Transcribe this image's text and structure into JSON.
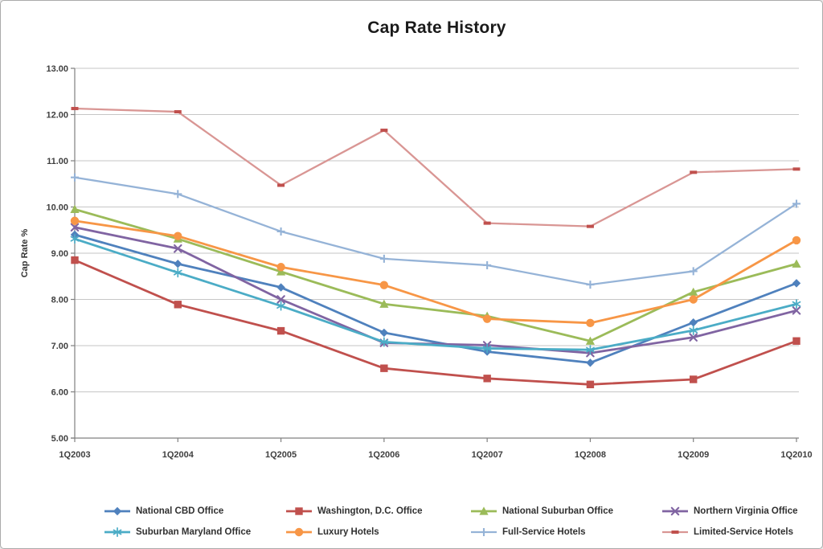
{
  "window": {
    "background": "#FFFFFF",
    "border_color": "#ABABAB"
  },
  "chart_data": {
    "type": "line",
    "title": "Cap Rate History",
    "xlabel": "",
    "ylabel": "Cap Rate %",
    "ylim": [
      5,
      13
    ],
    "y_tick_step": 1,
    "y_tick_labels": [
      "5.00",
      "6.00",
      "7.00",
      "8.00",
      "9.00",
      "10.00",
      "11.00",
      "12.00",
      "13.00"
    ],
    "grid": true,
    "legend_position": "bottom",
    "axis_color": "#808080",
    "grid_color": "#C6C6C6",
    "categories": [
      "1Q2003",
      "1Q2004",
      "1Q2005",
      "1Q2006",
      "1Q2007",
      "1Q2008",
      "1Q2009",
      "1Q2010"
    ],
    "series": [
      {
        "name": "National CBD Office",
        "color": "#4F81BD",
        "marker": "diamond",
        "values": [
          9.4,
          8.77,
          8.26,
          7.28,
          6.87,
          6.63,
          7.5,
          8.35
        ]
      },
      {
        "name": "Washington, D.C. Office",
        "color": "#C0504D",
        "marker": "square",
        "values": [
          8.85,
          7.89,
          7.32,
          6.51,
          6.29,
          6.16,
          6.27,
          7.1
        ]
      },
      {
        "name": "National Suburban Office",
        "color": "#9BBB59",
        "marker": "triangle",
        "values": [
          9.95,
          9.31,
          8.6,
          7.9,
          7.64,
          7.1,
          8.16,
          8.77
        ]
      },
      {
        "name": "Northern Virginia Office",
        "color": "#8064A2",
        "marker": "x",
        "values": [
          9.56,
          9.1,
          8.0,
          7.06,
          7.01,
          6.84,
          7.18,
          7.76
        ]
      },
      {
        "name": "Suburban Maryland Office",
        "color": "#4BACC6",
        "marker": "asterisk",
        "values": [
          9.31,
          8.58,
          7.86,
          7.08,
          6.94,
          6.91,
          7.33,
          7.9
        ]
      },
      {
        "name": "Luxury Hotels",
        "color": "#F79646",
        "marker": "circle",
        "values": [
          9.7,
          9.37,
          8.7,
          8.31,
          7.58,
          7.49,
          8.0,
          9.28
        ]
      },
      {
        "name": "Full-Service Hotels",
        "color": "#95B3D7",
        "marker": "plus",
        "values": [
          10.64,
          10.28,
          9.47,
          8.88,
          8.74,
          8.32,
          8.61,
          10.07
        ]
      },
      {
        "name": "Limited-Service Hotels",
        "color": "#D99694",
        "marker": "dash",
        "marker_color": "#C0504D",
        "values": [
          12.13,
          12.06,
          10.47,
          11.66,
          9.65,
          9.58,
          10.75,
          10.82
        ]
      }
    ]
  }
}
